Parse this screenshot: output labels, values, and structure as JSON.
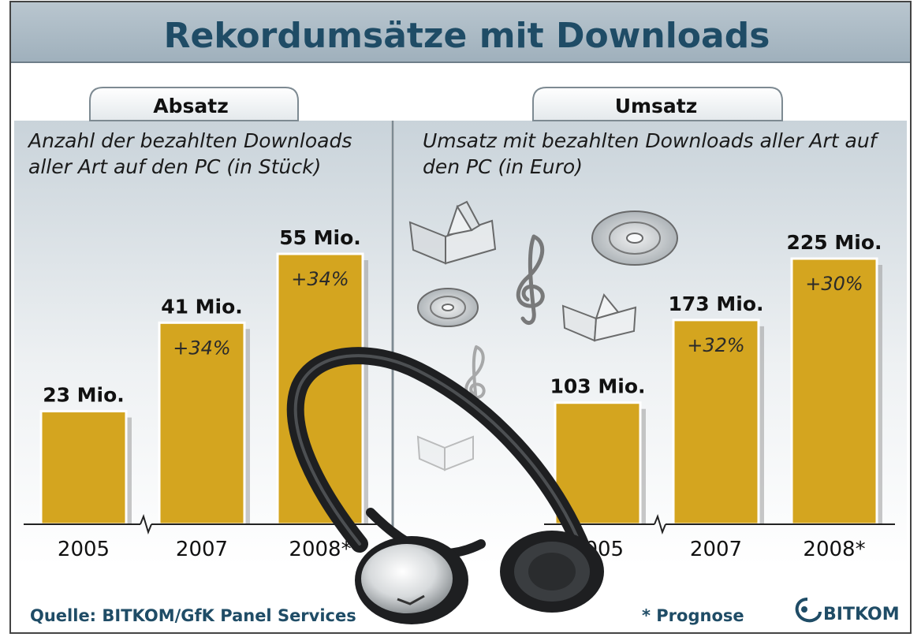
{
  "title": "Rekordumsätze mit Downloads",
  "source": "Quelle: BITKOM/GfK Panel Services",
  "footnote": "* Prognose",
  "logo_text": "BITKOM",
  "colors": {
    "bar": "#d4a51f",
    "bar_shadow": "#9a9a9a",
    "title_band": "#a8b8c4",
    "title_text": "#1f4c66",
    "panel_top": "#c9d3da",
    "panel_bottom": "#ffffff"
  },
  "icons": [
    "headphones-icon",
    "book-icon",
    "cd-icon",
    "treble-clef-icon",
    "bitkom-logo-icon"
  ],
  "chart_data": [
    {
      "type": "bar",
      "tab": "Absatz",
      "title": "Anzahl der bezahlten Downloads aller Art auf den PC (in Stück)",
      "title_lines": [
        "Anzahl der bezahlten Downloads",
        "aller Art auf den PC (in Stück)"
      ],
      "categories": [
        "2005",
        "2007",
        "2008*"
      ],
      "values": [
        23,
        41,
        55
      ],
      "value_labels": [
        "23 Mio.",
        "41 Mio.",
        "55 Mio."
      ],
      "growth_labels": [
        "",
        "+34%",
        "+34%"
      ],
      "axis_break": true,
      "ylim": [
        0,
        60
      ],
      "unit": "Mio."
    },
    {
      "type": "bar",
      "tab": "Umsatz",
      "title": "Umsatz mit bezahlten Downloads aller Art auf den PC (in Euro)",
      "title_lines": [
        "Umsatz mit bezahlten Downloads aller Art auf",
        "den PC (in Euro)"
      ],
      "categories": [
        "2005",
        "2007",
        "2008*"
      ],
      "values": [
        103,
        173,
        225
      ],
      "value_labels": [
        "103 Mio.",
        "173 Mio.",
        "225 Mio."
      ],
      "growth_labels": [
        "",
        "+32%",
        "+30%"
      ],
      "axis_break": true,
      "ylim": [
        0,
        250
      ],
      "unit": "Mio."
    }
  ]
}
